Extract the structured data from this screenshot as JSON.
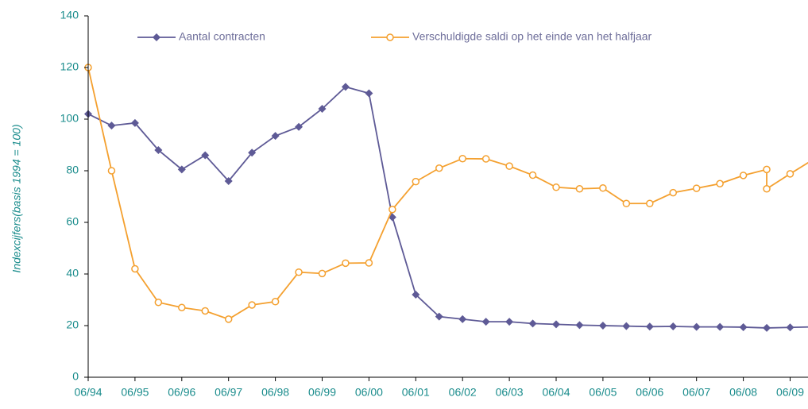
{
  "chart_data": {
    "type": "line",
    "y_label": "Indexcijfers(basis 1994 = 100)",
    "categories": [
      "06/94",
      null,
      "06/95",
      null,
      "06/96",
      null,
      "06/97",
      null,
      "06/98",
      null,
      "06/99",
      null,
      "06/00",
      null,
      "06/01",
      null,
      "06/02",
      null,
      "06/03",
      null,
      "06/04",
      null,
      "06/05",
      null,
      "06/06",
      null,
      "06/07",
      null,
      "06/08",
      null,
      "06/09",
      null
    ],
    "series": [
      {
        "name": "Aantal contracten",
        "color": "#5e5a96",
        "marker": "diamond",
        "values": [
          102,
          97.5,
          98.5,
          88,
          80.5,
          86,
          76,
          87,
          93.5,
          97,
          104,
          112.5,
          110,
          62,
          32,
          23.5,
          22.5,
          21.5,
          21.5,
          20.8,
          20.5,
          20.2,
          20,
          19.8,
          19.6,
          19.7,
          19.5,
          19.5,
          19.4,
          19.1,
          19.3,
          19.5
        ]
      },
      {
        "name": "Verschuldigde saldi op het einde van het halfjaar",
        "color": "#f4a02f",
        "marker": "circle",
        "values": [
          120,
          80,
          42,
          29,
          27,
          25.7,
          22.5,
          28,
          29.3,
          40.7,
          40.2,
          44.2,
          44.3,
          65,
          75.8,
          81,
          84.7,
          84.6,
          81.8,
          78.3,
          73.6,
          73,
          73.3,
          67.3,
          67.3,
          71.5,
          73.2,
          75,
          78.2,
          [
            80.5,
            73
          ],
          78.8,
          84.4
        ]
      }
    ],
    "ylim": [
      0,
      140
    ],
    "yticks": [
      0,
      20,
      40,
      60,
      80,
      100,
      120,
      140
    ],
    "grid": false
  }
}
